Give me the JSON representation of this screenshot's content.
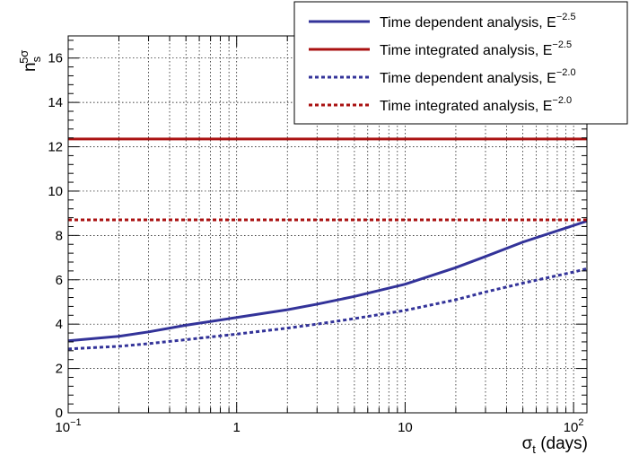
{
  "chart_data": {
    "type": "line",
    "xlabel": "σ",
    "xlabel_sub": "t",
    "xlabel_unit": " (days)",
    "ylabel": "n",
    "ylabel_sub": "s",
    "ylabel_sup": "5σ",
    "xscale": "log",
    "xlim": [
      0.1,
      120
    ],
    "ylim": [
      0,
      17
    ],
    "grid": true,
    "legend_position": "top-right",
    "x_ticks": [
      {
        "value": 0.1,
        "base": "10",
        "exp": "−1"
      },
      {
        "value": 1,
        "base": "1",
        "exp": ""
      },
      {
        "value": 10,
        "base": "10",
        "exp": ""
      },
      {
        "value": 100,
        "base": "10",
        "exp": "2"
      }
    ],
    "y_ticks": [
      "0",
      "2",
      "4",
      "6",
      "8",
      "10",
      "12",
      "14",
      "16"
    ],
    "series": [
      {
        "name": "Time dependent analysis, E",
        "exp": "−2.5",
        "color": "#333399",
        "dash": false,
        "x": [
          0.1,
          0.2,
          0.3,
          0.5,
          1,
          2,
          3,
          5,
          10,
          20,
          30,
          50,
          100,
          120
        ],
        "y": [
          3.25,
          3.45,
          3.65,
          3.95,
          4.3,
          4.65,
          4.9,
          5.25,
          5.8,
          6.55,
          7.05,
          7.7,
          8.45,
          8.65
        ]
      },
      {
        "name": "Time integrated analysis, E",
        "exp": "−2.5",
        "color": "#aa1111",
        "dash": false,
        "x": [
          0.1,
          120
        ],
        "y": [
          12.35,
          12.35
        ]
      },
      {
        "name": "Time dependent analysis, E",
        "exp": "−2.0",
        "color": "#333399",
        "dash": true,
        "x": [
          0.1,
          0.2,
          0.3,
          0.5,
          1,
          2,
          3,
          5,
          10,
          20,
          30,
          50,
          100,
          120
        ],
        "y": [
          2.88,
          3.0,
          3.12,
          3.3,
          3.55,
          3.82,
          4.0,
          4.25,
          4.62,
          5.1,
          5.45,
          5.85,
          6.35,
          6.5
        ]
      },
      {
        "name": "Time integrated analysis, E",
        "exp": "−2.0",
        "color": "#aa1111",
        "dash": true,
        "x": [
          0.1,
          120
        ],
        "y": [
          8.7,
          8.7
        ]
      }
    ]
  }
}
